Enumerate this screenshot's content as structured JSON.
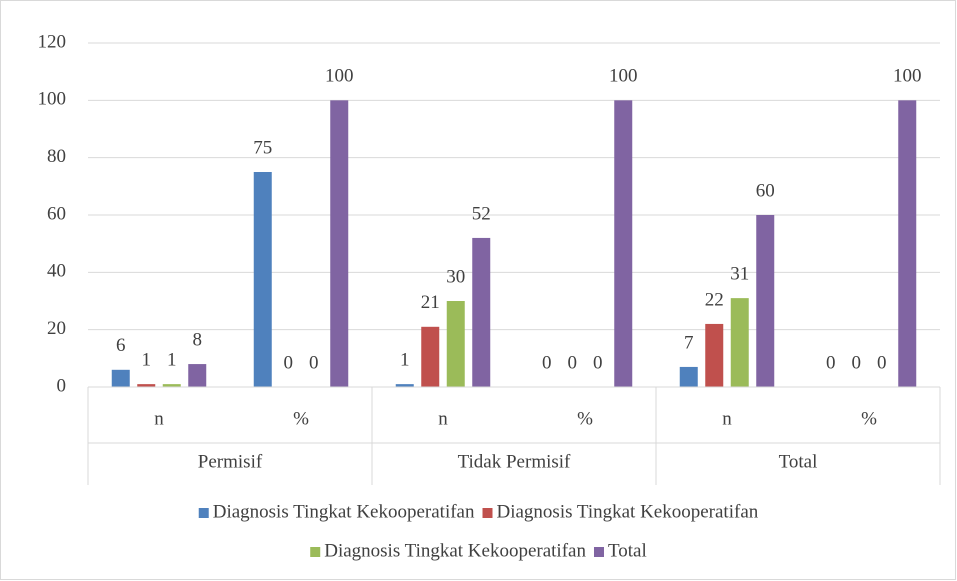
{
  "chart_data": {
    "type": "bar",
    "categories": [
      "n",
      "%",
      "n",
      "%",
      "n",
      "%"
    ],
    "groups": [
      "Permisif",
      "Tidak Permisif",
      "Total"
    ],
    "series": [
      {
        "name": "Diagnosis Tingkat Kekooperatifan",
        "color": "#4f81bd",
        "values": [
          6,
          75,
          1,
          0,
          7,
          0
        ]
      },
      {
        "name": "Diagnosis Tingkat Kekooperatifan",
        "color": "#c0504d",
        "values": [
          1,
          0,
          21,
          0,
          22,
          0
        ]
      },
      {
        "name": "Diagnosis Tingkat Kekooperatifan",
        "color": "#9bbb59",
        "values": [
          1,
          0,
          30,
          0,
          31,
          0
        ]
      },
      {
        "name": "Total",
        "color": "#8064a2",
        "values": [
          8,
          100,
          52,
          100,
          60,
          100
        ]
      }
    ],
    "ylim": [
      0,
      120
    ],
    "yticks": [
      0,
      20,
      40,
      60,
      80,
      100,
      120
    ],
    "grid": true,
    "legend": "bottom"
  }
}
